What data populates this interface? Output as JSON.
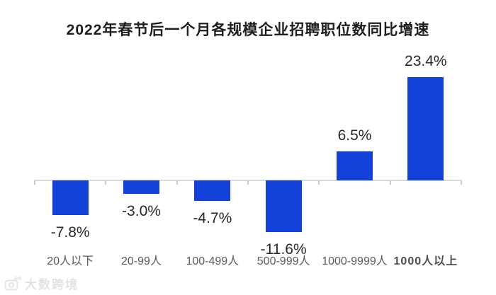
{
  "title": "2022年春节后一个月各规模企业招聘职位数同比增速",
  "chart_data": {
    "type": "bar",
    "title": "2022年春节后一个月各规模企业招聘职位数同比增速",
    "categories": [
      "20人以下",
      "20-99人",
      "100-499人",
      "500-999人",
      "1000-9999人",
      "1000人以上"
    ],
    "values": [
      -7.8,
      -3.0,
      -4.7,
      -11.6,
      6.5,
      23.4
    ],
    "value_labels": [
      "-7.8%",
      "-3.0%",
      "-4.7%",
      "-11.6%",
      "6.5%",
      "23.4%"
    ],
    "emphasized_category_index": 5,
    "xlabel": "",
    "ylabel": "",
    "ylim": [
      -13,
      26
    ],
    "grid": false,
    "legend": false,
    "bar_color": "#1441d9",
    "axis_color": "#d9d9d9"
  },
  "watermark": {
    "text": "大数跨境",
    "logo": "camera-logo-icon"
  }
}
